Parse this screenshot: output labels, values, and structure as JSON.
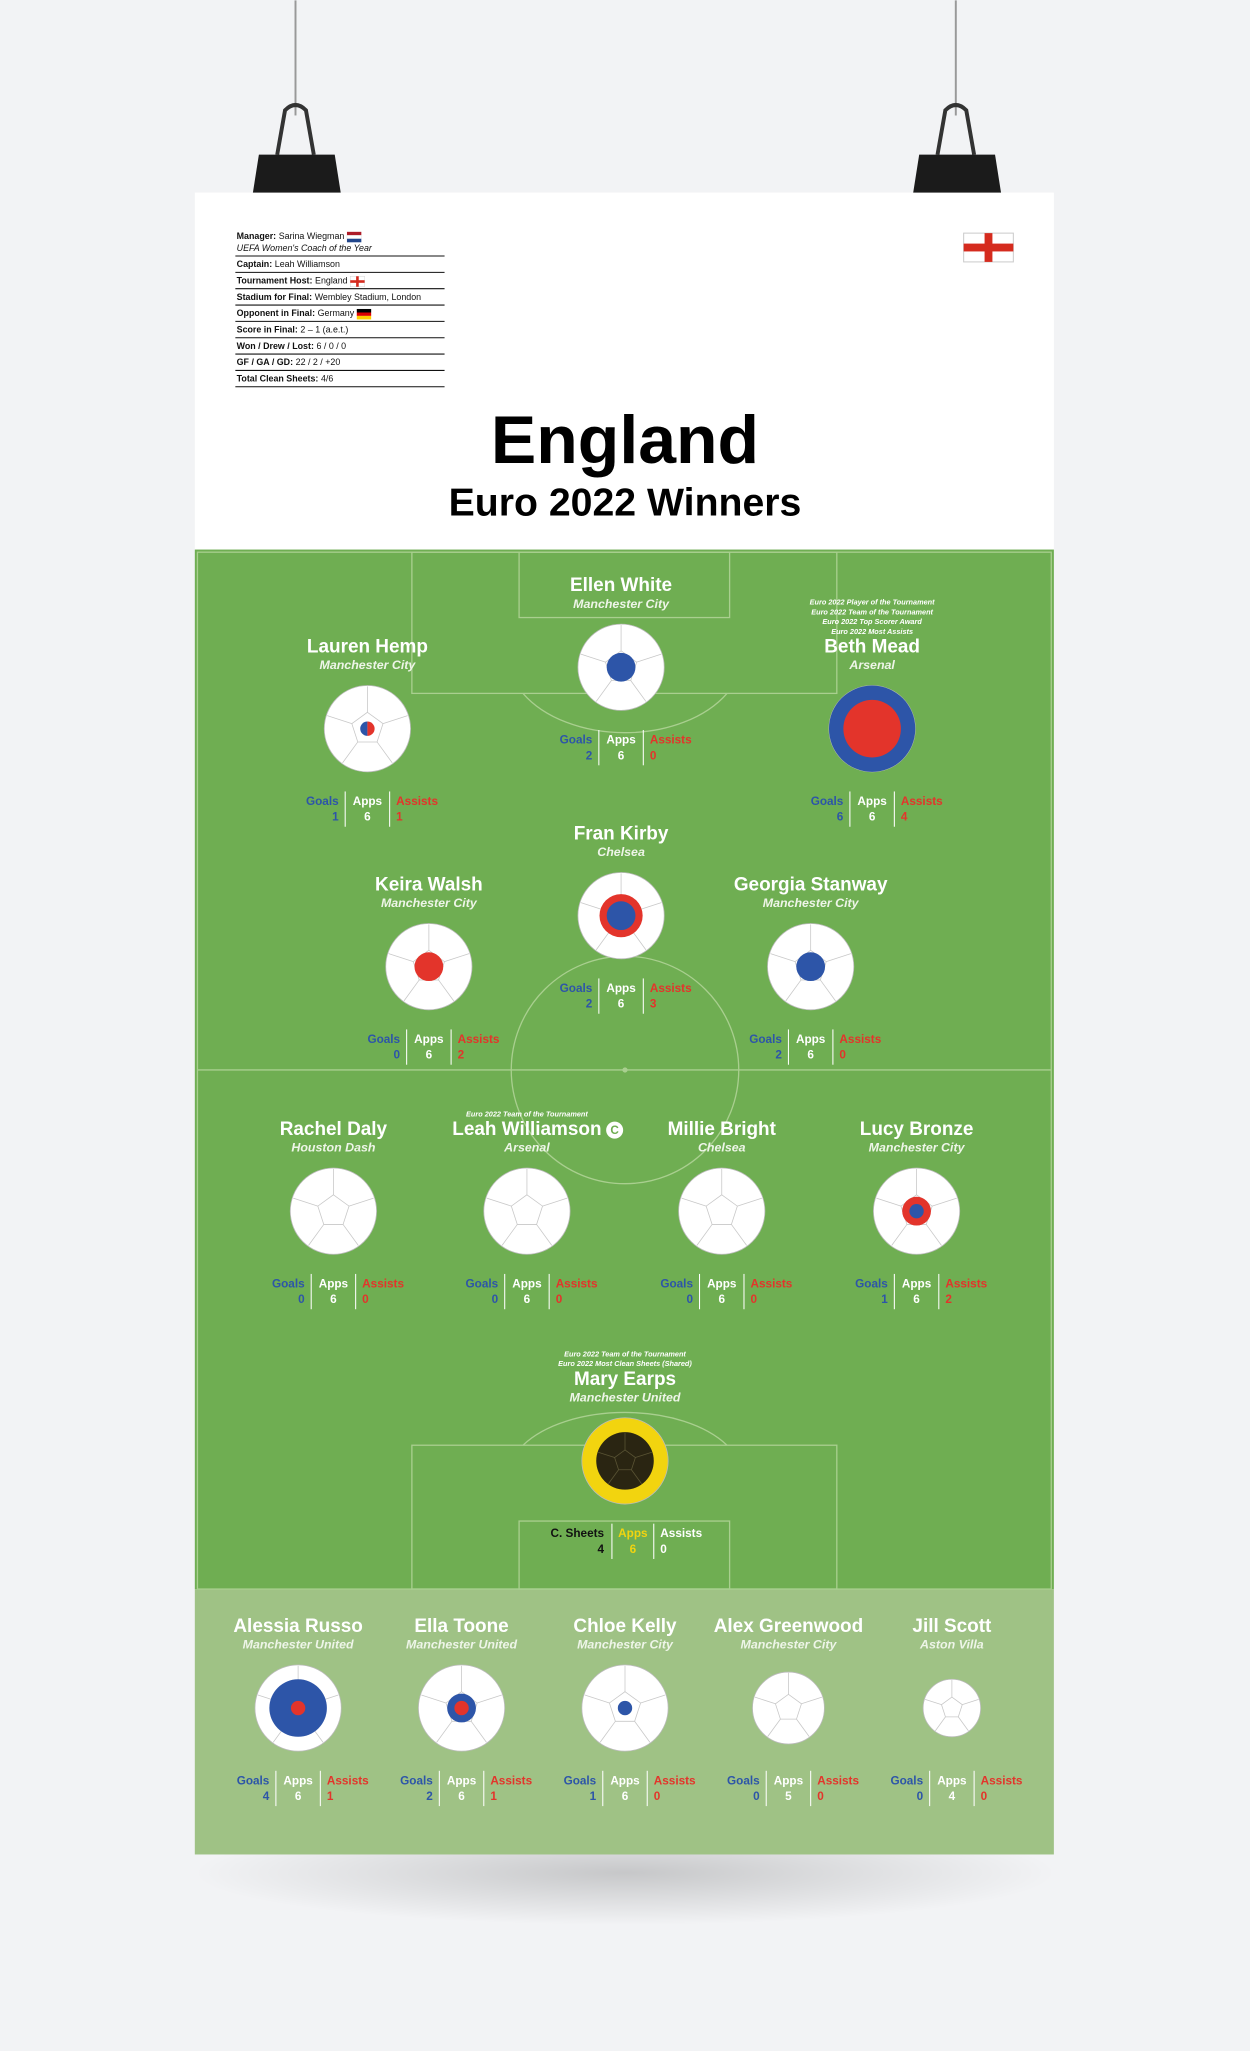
{
  "info": [
    {
      "label": "Manager:",
      "value": "Sarina Wiegman",
      "note": "UEFA Women's Coach of the Year"
    },
    {
      "label": "Captain:",
      "value": "Leah Williamson"
    },
    {
      "label": "Tournament Host:",
      "value": "England"
    },
    {
      "label": "Stadium for Final:",
      "value": "Wembley Stadium, London"
    },
    {
      "label": "Opponent in Final:",
      "value": "Germany"
    },
    {
      "label": "Score in Final:",
      "value": "2 – 1 (a.e.t.)"
    },
    {
      "label": "Won / Drew / Lost:",
      "value": "6 / 0 / 0"
    },
    {
      "label": "GF / GA / GD:",
      "value": "22 / 2 / +20"
    },
    {
      "label": "Total Clean Sheets:",
      "value": "4/6"
    }
  ],
  "header": {
    "title": "England",
    "subtitle": "Euro 2022 Winners"
  },
  "stat_labels": {
    "goals": "Goals",
    "apps": "Apps",
    "assists": "Assists",
    "clean_sheets": "C. Sheets"
  },
  "players": [
    {
      "name": "Ellen White",
      "club": "Manchester City",
      "goals": 2,
      "apps": 6,
      "assists": 0
    },
    {
      "name": "Lauren Hemp",
      "club": "Manchester City",
      "goals": 1,
      "apps": 6,
      "assists": 1
    },
    {
      "name": "Beth Mead",
      "club": "Arsenal",
      "awards": [
        "Euro 2022 Player of the Tournament",
        "Euro 2022 Team of the Tournament",
        "Euro 2022 Top Scorer Award",
        "Euro 2022 Most Assists"
      ],
      "goals": 6,
      "apps": 6,
      "assists": 4
    },
    {
      "name": "Fran Kirby",
      "club": "Chelsea",
      "goals": 2,
      "apps": 6,
      "assists": 3
    },
    {
      "name": "Keira Walsh",
      "club": "Manchester City",
      "goals": 0,
      "apps": 6,
      "assists": 2
    },
    {
      "name": "Georgia Stanway",
      "club": "Manchester City",
      "goals": 2,
      "apps": 6,
      "assists": 0
    },
    {
      "name": "Rachel Daly",
      "club": "Houston Dash",
      "goals": 0,
      "apps": 6,
      "assists": 0
    },
    {
      "name": "Leah Williamson",
      "club": "Arsenal",
      "awards": [
        "Euro 2022 Team of the Tournament"
      ],
      "captain": "C",
      "goals": 0,
      "apps": 6,
      "assists": 0
    },
    {
      "name": "Millie Bright",
      "club": "Chelsea",
      "goals": 0,
      "apps": 6,
      "assists": 0
    },
    {
      "name": "Lucy Bronze",
      "club": "Manchester City",
      "goals": 1,
      "apps": 6,
      "assists": 2
    }
  ],
  "goalkeeper": {
    "name": "Mary Earps",
    "club": "Manchester United",
    "awards": [
      "Euro 2022 Team of the Tournament",
      "Euro 2022 Most Clean Sheets (Shared)"
    ],
    "clean_sheets": 4,
    "apps": 6,
    "assists": 0
  },
  "substitutes": [
    {
      "name": "Alessia Russo",
      "club": "Manchester United",
      "goals": 4,
      "apps": 6,
      "assists": 1
    },
    {
      "name": "Ella Toone",
      "club": "Manchester United",
      "goals": 2,
      "apps": 6,
      "assists": 1
    },
    {
      "name": "Chloe Kelly",
      "club": "Manchester City",
      "goals": 1,
      "apps": 6,
      "assists": 0
    },
    {
      "name": "Alex Greenwood",
      "club": "Manchester City",
      "goals": 0,
      "apps": 5,
      "assists": 0
    },
    {
      "name": "Jill Scott",
      "club": "Aston Villa",
      "goals": 0,
      "apps": 4,
      "assists": 0
    }
  ]
}
